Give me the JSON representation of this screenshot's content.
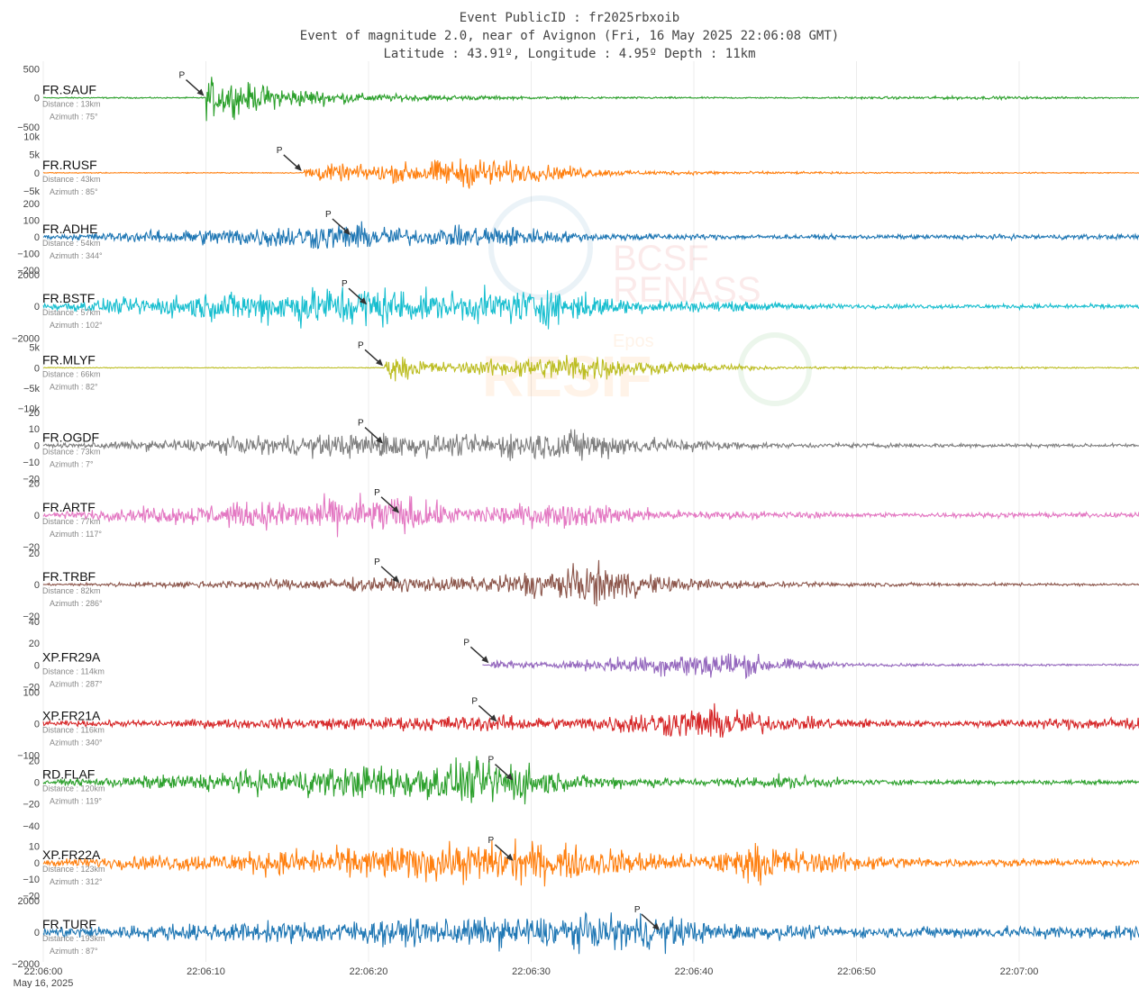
{
  "header": {
    "line1": "Event PublicID : fr2025rbxoib",
    "line2": "Event of magnitude 2.0, near of Avignon (Fri, 16 May 2025 22:06:08 GMT)",
    "line3": "Latitude : 43.91º, Longitude : 4.95º Depth : 11km"
  },
  "watermark": {
    "text1": "BCSF",
    "text2": "RENASS",
    "text3": "Epos",
    "text4": "RESIF"
  },
  "chart_data": {
    "type": "line",
    "x_axis": {
      "ticks": [
        "22:06:00",
        "22:06:10",
        "22:06:20",
        "22:06:30",
        "22:06:40",
        "22:06:50",
        "22:07:00"
      ],
      "date_label": "May 16, 2025",
      "range_s": [
        0,
        68
      ]
    },
    "p_marker": "P",
    "series": [
      {
        "name": "FR.SAUF",
        "distance": "Distance : 13km",
        "azimuth": "Azimuth : 75°",
        "color": "#2ca02c",
        "y_ticks": [
          "500",
          "0",
          "−500"
        ],
        "y_tick_values": [
          500,
          0,
          -500
        ],
        "ylim": [
          -600,
          600
        ],
        "peak": 500,
        "p_time_s": 10,
        "envelope": [
          [
            10,
            1
          ],
          [
            14,
            0.55
          ],
          [
            20,
            0.2
          ],
          [
            30,
            0.06
          ],
          [
            45,
            0.03
          ],
          [
            57,
            0.08
          ],
          [
            68,
            0.02
          ]
        ]
      },
      {
        "name": "FR.RUSF",
        "distance": "Distance : 43km",
        "azimuth": "Azimuth : 85°",
        "color": "#ff7f0e",
        "y_ticks": [
          "10k",
          "5k",
          "0",
          "−5k"
        ],
        "y_tick_values": [
          10000,
          5000,
          0,
          -5000
        ],
        "ylim": [
          -8000,
          11000
        ],
        "peak": 6000,
        "p_time_s": 16,
        "envelope": [
          [
            16,
            0.55
          ],
          [
            20,
            0.5
          ],
          [
            27,
            1
          ],
          [
            30,
            0.55
          ],
          [
            36,
            0.15
          ],
          [
            50,
            0.05
          ],
          [
            68,
            0.03
          ]
        ]
      },
      {
        "name": "FR.ADHE",
        "distance": "Distance : 54km",
        "azimuth": "Azimuth : 344°",
        "color": "#1f77b4",
        "y_ticks": [
          "200",
          "100",
          "0",
          "−100",
          "−200"
        ],
        "y_tick_values": [
          200,
          100,
          0,
          -100,
          -200
        ],
        "ylim": [
          -210,
          210
        ],
        "peak": 120,
        "p_time_s": 19,
        "envelope": [
          [
            0,
            0.12
          ],
          [
            19,
            1
          ],
          [
            23,
            0.55
          ],
          [
            28,
            0.85
          ],
          [
            33,
            0.3
          ],
          [
            45,
            0.15
          ],
          [
            68,
            0.18
          ]
        ]
      },
      {
        "name": "FR.BSTF",
        "distance": "Distance : 57km",
        "azimuth": "Azimuth : 102°",
        "color": "#17becf",
        "y_ticks": [
          "2000",
          "0",
          "−2000"
        ],
        "y_tick_values": [
          2000,
          0,
          -2000
        ],
        "ylim": [
          -2200,
          2200
        ],
        "peak": 2000,
        "p_time_s": 20,
        "envelope": [
          [
            0,
            0.15
          ],
          [
            20,
            1
          ],
          [
            24,
            0.6
          ],
          [
            31,
            0.85
          ],
          [
            36,
            0.3
          ],
          [
            50,
            0.1
          ],
          [
            68,
            0.1
          ]
        ]
      },
      {
        "name": "FR.MLYF",
        "distance": "Distance : 66km",
        "azimuth": "Azimuth : 82°",
        "color": "#bcbd22",
        "y_ticks": [
          "5k",
          "0",
          "−5k",
          "−10k"
        ],
        "y_tick_values": [
          5000,
          0,
          -5000,
          -10000
        ],
        "ylim": [
          -10500,
          6500
        ],
        "peak": 5000,
        "p_time_s": 21,
        "envelope": [
          [
            21,
            0.85
          ],
          [
            25,
            0.35
          ],
          [
            33,
            1
          ],
          [
            37,
            0.45
          ],
          [
            45,
            0.1
          ],
          [
            68,
            0.04
          ]
        ]
      },
      {
        "name": "FR.OGDF",
        "distance": "Distance : 73km",
        "azimuth": "Azimuth : 7°",
        "color": "#7f7f7f",
        "y_ticks": [
          "20",
          "10",
          "0",
          "−10",
          "−20"
        ],
        "y_tick_values": [
          20,
          10,
          0,
          -10,
          -20
        ],
        "ylim": [
          -21,
          21
        ],
        "peak": 14,
        "p_time_s": 21,
        "envelope": [
          [
            0,
            0.08
          ],
          [
            21,
            0.8
          ],
          [
            25,
            0.6
          ],
          [
            33,
            1
          ],
          [
            37,
            0.5
          ],
          [
            45,
            0.15
          ],
          [
            68,
            0.1
          ]
        ]
      },
      {
        "name": "FR.ARTF",
        "distance": "Distance : 77km",
        "azimuth": "Azimuth : 117°",
        "color": "#e377c2",
        "y_ticks": [
          "20",
          "0",
          "−20"
        ],
        "y_tick_values": [
          20,
          0,
          -20
        ],
        "ylim": [
          -22,
          22
        ],
        "peak": 18,
        "p_time_s": 22,
        "envelope": [
          [
            0,
            0.12
          ],
          [
            22,
            1
          ],
          [
            25,
            0.45
          ],
          [
            33,
            0.6
          ],
          [
            38,
            0.25
          ],
          [
            50,
            0.12
          ],
          [
            68,
            0.12
          ]
        ]
      },
      {
        "name": "FR.TRBF",
        "distance": "Distance : 82km",
        "azimuth": "Azimuth : 286°",
        "color": "#8c564b",
        "y_ticks": [
          "20",
          "0",
          "−20"
        ],
        "y_tick_values": [
          20,
          0,
          -20
        ],
        "ylim": [
          -22,
          22
        ],
        "peak": 18,
        "p_time_s": 22,
        "envelope": [
          [
            0,
            0.04
          ],
          [
            22,
            0.35
          ],
          [
            26,
            0.35
          ],
          [
            34,
            1
          ],
          [
            38,
            0.4
          ],
          [
            45,
            0.12
          ],
          [
            68,
            0.05
          ]
        ]
      },
      {
        "name": "XP.FR29A",
        "distance": "Distance : 114km",
        "azimuth": "Azimuth : 287°",
        "color": "#9467bd",
        "y_ticks": [
          "40",
          "20",
          "0",
          "−20"
        ],
        "y_tick_values": [
          40,
          20,
          0,
          -20
        ],
        "ylim": [
          -22,
          42
        ],
        "peak": 20,
        "p_time_s": 27.5,
        "envelope": [
          [
            27.5,
            0.3
          ],
          [
            31,
            0.15
          ],
          [
            42,
            1
          ],
          [
            45,
            0.45
          ],
          [
            50,
            0.1
          ],
          [
            68,
            0.06
          ]
        ]
      },
      {
        "name": "XP.FR21A",
        "distance": "Distance : 116km",
        "azimuth": "Azimuth : 340°",
        "color": "#d62728",
        "y_ticks": [
          "100",
          "0",
          "−100"
        ],
        "y_tick_values": [
          100,
          0,
          -100
        ],
        "ylim": [
          -110,
          110
        ],
        "peak": 80,
        "p_time_s": 28,
        "envelope": [
          [
            0,
            0.12
          ],
          [
            28,
            0.45
          ],
          [
            32,
            0.3
          ],
          [
            42,
            1
          ],
          [
            45,
            0.4
          ],
          [
            55,
            0.15
          ],
          [
            67,
            0.4
          ],
          [
            68,
            0.15
          ]
        ]
      },
      {
        "name": "RD.FLAF",
        "distance": "Distance : 120km",
        "azimuth": "Azimuth : 119°",
        "color": "#2ca02c",
        "y_ticks": [
          "20",
          "0",
          "−20",
          "−40"
        ],
        "y_tick_values": [
          20,
          0,
          -20,
          -40
        ],
        "ylim": [
          -42,
          22
        ],
        "peak": 30,
        "p_time_s": 29,
        "envelope": [
          [
            0,
            0.08
          ],
          [
            29,
            1
          ],
          [
            32,
            0.35
          ],
          [
            40,
            0.15
          ],
          [
            46,
            0.3
          ],
          [
            50,
            0.12
          ],
          [
            68,
            0.08
          ]
        ]
      },
      {
        "name": "XP.FR22A",
        "distance": "Distance : 123km",
        "azimuth": "Azimuth : 312°",
        "color": "#ff7f0e",
        "y_ticks": [
          "10",
          "0",
          "−10",
          "−20"
        ],
        "y_tick_values": [
          10,
          0,
          -10,
          -20
        ],
        "ylim": [
          -21,
          21
        ],
        "peak": 18,
        "p_time_s": 29,
        "envelope": [
          [
            0,
            0.15
          ],
          [
            29,
            1
          ],
          [
            34,
            0.7
          ],
          [
            40,
            0.35
          ],
          [
            44,
            0.9
          ],
          [
            48,
            0.5
          ],
          [
            55,
            0.2
          ],
          [
            68,
            0.15
          ]
        ]
      },
      {
        "name": "FR.TURF",
        "distance": "Distance : 193km",
        "azimuth": "Azimuth : 87°",
        "color": "#1f77b4",
        "y_ticks": [
          "2000",
          "0",
          "−2000"
        ],
        "y_tick_values": [
          2000,
          0,
          -2000
        ],
        "ylim": [
          -2200,
          2200
        ],
        "peak": 1600,
        "p_time_s": 38,
        "envelope": [
          [
            0,
            0.3
          ],
          [
            38,
            1
          ],
          [
            41,
            0.5
          ],
          [
            50,
            0.3
          ],
          [
            60,
            0.35
          ],
          [
            68,
            0.4
          ]
        ]
      }
    ]
  }
}
